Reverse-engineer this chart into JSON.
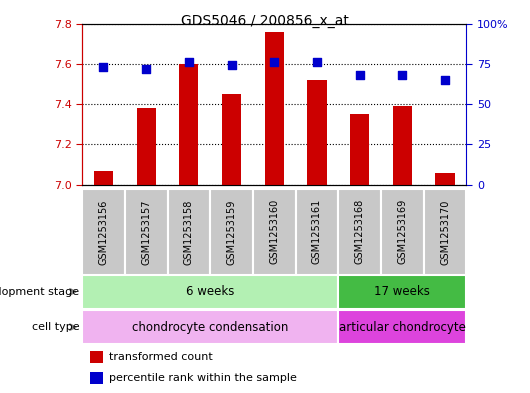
{
  "title": "GDS5046 / 200856_x_at",
  "samples": [
    "GSM1253156",
    "GSM1253157",
    "GSM1253158",
    "GSM1253159",
    "GSM1253160",
    "GSM1253161",
    "GSM1253168",
    "GSM1253169",
    "GSM1253170"
  ],
  "bar_values": [
    7.07,
    7.38,
    7.6,
    7.45,
    7.76,
    7.52,
    7.35,
    7.39,
    7.06
  ],
  "scatter_values": [
    73,
    72,
    76,
    74,
    76,
    76,
    68,
    68,
    65
  ],
  "ymin": 7.0,
  "ymax": 7.8,
  "y2min": 0,
  "y2max": 100,
  "yticks": [
    7.0,
    7.2,
    7.4,
    7.6,
    7.8
  ],
  "y2ticks": [
    0,
    25,
    50,
    75,
    100
  ],
  "y2ticklabels": [
    "0",
    "25",
    "50",
    "75",
    "100%"
  ],
  "bar_color": "#cc0000",
  "scatter_color": "#0000cc",
  "grid_color": "#000000",
  "dev_stage_label": "development stage",
  "cell_type_label": "cell type",
  "dev_groups": [
    {
      "label": "6 weeks",
      "start": 0,
      "end": 5,
      "color": "#b3f0b3"
    },
    {
      "label": "17 weeks",
      "start": 6,
      "end": 8,
      "color": "#44bb44"
    }
  ],
  "cell_groups": [
    {
      "label": "chondrocyte condensation",
      "start": 0,
      "end": 5,
      "color": "#f0b3f0"
    },
    {
      "label": "articular chondrocyte",
      "start": 6,
      "end": 8,
      "color": "#dd44dd"
    }
  ],
  "legend_bar_label": "transformed count",
  "legend_scatter_label": "percentile rank within the sample",
  "bar_color_legend": "#cc0000",
  "scatter_color_legend": "#0000cc",
  "tick_label_color_left": "#cc0000",
  "tick_label_color_right": "#0000cc",
  "xlabels_bg": "#c8c8c8",
  "xlabels_sep_color": "#ffffff",
  "arrow_color": "#888888"
}
